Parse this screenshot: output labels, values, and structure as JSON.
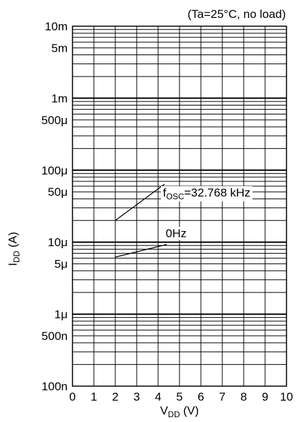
{
  "chart_data": {
    "type": "line",
    "y_scale": "log",
    "condition": "(Ta=25°C, no load)",
    "xlabel": {
      "main": "V",
      "sub": "DD",
      "unit": " (V)"
    },
    "ylabel": {
      "main": "I",
      "sub": "DD",
      "unit": " (A)"
    },
    "xlim": [
      0,
      10
    ],
    "ylim": [
      1e-07,
      0.01
    ],
    "x_ticks": [
      {
        "value": 0,
        "label": "0"
      },
      {
        "value": 1,
        "label": "1"
      },
      {
        "value": 2,
        "label": "2"
      },
      {
        "value": 3,
        "label": "3"
      },
      {
        "value": 4,
        "label": "4"
      },
      {
        "value": 5,
        "label": "5"
      },
      {
        "value": 6,
        "label": "6"
      },
      {
        "value": 7,
        "label": "7"
      },
      {
        "value": 8,
        "label": "8"
      },
      {
        "value": 9,
        "label": "9"
      },
      {
        "value": 10,
        "label": "10"
      }
    ],
    "y_ticks": [
      {
        "value": 0.01,
        "label": "10m"
      },
      {
        "value": 0.005,
        "label": "5m"
      },
      {
        "value": 0.001,
        "label": "1m"
      },
      {
        "value": 0.0005,
        "label": "500μ"
      },
      {
        "value": 0.0001,
        "label": "100μ"
      },
      {
        "value": 5e-05,
        "label": "50μ"
      },
      {
        "value": 1e-05,
        "label": "10μ"
      },
      {
        "value": 5e-06,
        "label": "5μ"
      },
      {
        "value": 1e-06,
        "label": "1μ"
      },
      {
        "value": 5e-07,
        "label": "500n"
      },
      {
        "value": 1e-07,
        "label": "100n"
      }
    ],
    "grid": true,
    "series": [],
    "annotations": [
      {
        "text_main": "f",
        "text_sub": "OSC",
        "text_rest": "=32.768 kHz"
      },
      {
        "text_main": "0Hz",
        "text_sub": "",
        "text_rest": ""
      }
    ]
  },
  "leaders": [
    {
      "from": [
        2.0,
        2e-05
      ],
      "to": [
        4.3,
        6.4e-05
      ]
    },
    {
      "from": [
        2.0,
        6.2e-06
      ],
      "to": [
        4.4,
        9.3e-06
      ]
    }
  ]
}
